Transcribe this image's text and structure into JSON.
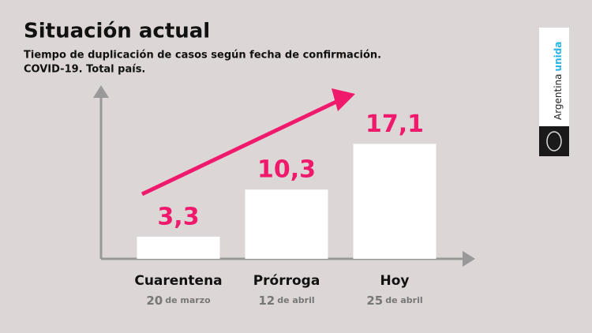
{
  "chart_data": {
    "type": "bar",
    "title": "Situación actual",
    "subtitle": [
      "Tiempo de duplicación de casos según fecha de confirmación.",
      "COVID-19. Total país."
    ],
    "categories": [
      "Cuarentena",
      "Prórroga",
      "Hoy"
    ],
    "dates": [
      {
        "day": "20",
        "rest": "de marzo"
      },
      {
        "day": "12",
        "rest": "de abril"
      },
      {
        "day": "25",
        "rest": "de abril"
      }
    ],
    "values": [
      3.3,
      10.3,
      17.1
    ],
    "value_labels": [
      "3,3",
      "10,3",
      "17,1"
    ],
    "color": "#ffffff",
    "label_color": "#ef1a6c",
    "ylim": [
      0,
      25
    ]
  },
  "logo": {
    "word1": "Argentina",
    "word2": "unida"
  }
}
